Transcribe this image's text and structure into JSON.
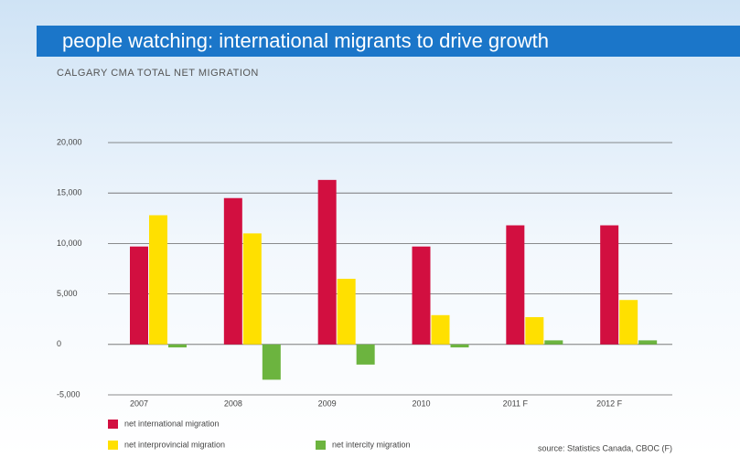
{
  "chart_data": {
    "type": "bar",
    "title": "people watching: international migrants to drive growth",
    "subtitle": "CALGARY CMA TOTAL NET MIGRATION",
    "source": "source: Statistics Canada, CBOC (F)",
    "categories": [
      "2007",
      "2008",
      "2009",
      "2010",
      "2011 F",
      "2012 F"
    ],
    "series": [
      {
        "name": "net international migration",
        "color": "#d20f40",
        "values": [
          9700,
          14500,
          16300,
          9700,
          11800,
          11800
        ]
      },
      {
        "name": "net interprovincial migration",
        "color": "#ffe000",
        "values": [
          12800,
          11000,
          6500,
          2900,
          2700,
          4400
        ]
      },
      {
        "name": "net intercity migration",
        "color": "#6cb43f",
        "values": [
          -300,
          -3500,
          -2000,
          -300,
          400,
          400
        ]
      }
    ],
    "ylim": [
      -5000,
      20000
    ],
    "yticks": [
      {
        "value": -5000,
        "label": "-5,000"
      },
      0,
      {
        "value": 5000,
        "label": "5,000"
      },
      {
        "value": 10000,
        "label": "10,000"
      },
      {
        "value": 15000,
        "label": "15,000"
      },
      {
        "value": 20000,
        "label": "20,000"
      }
    ],
    "grid": true
  }
}
